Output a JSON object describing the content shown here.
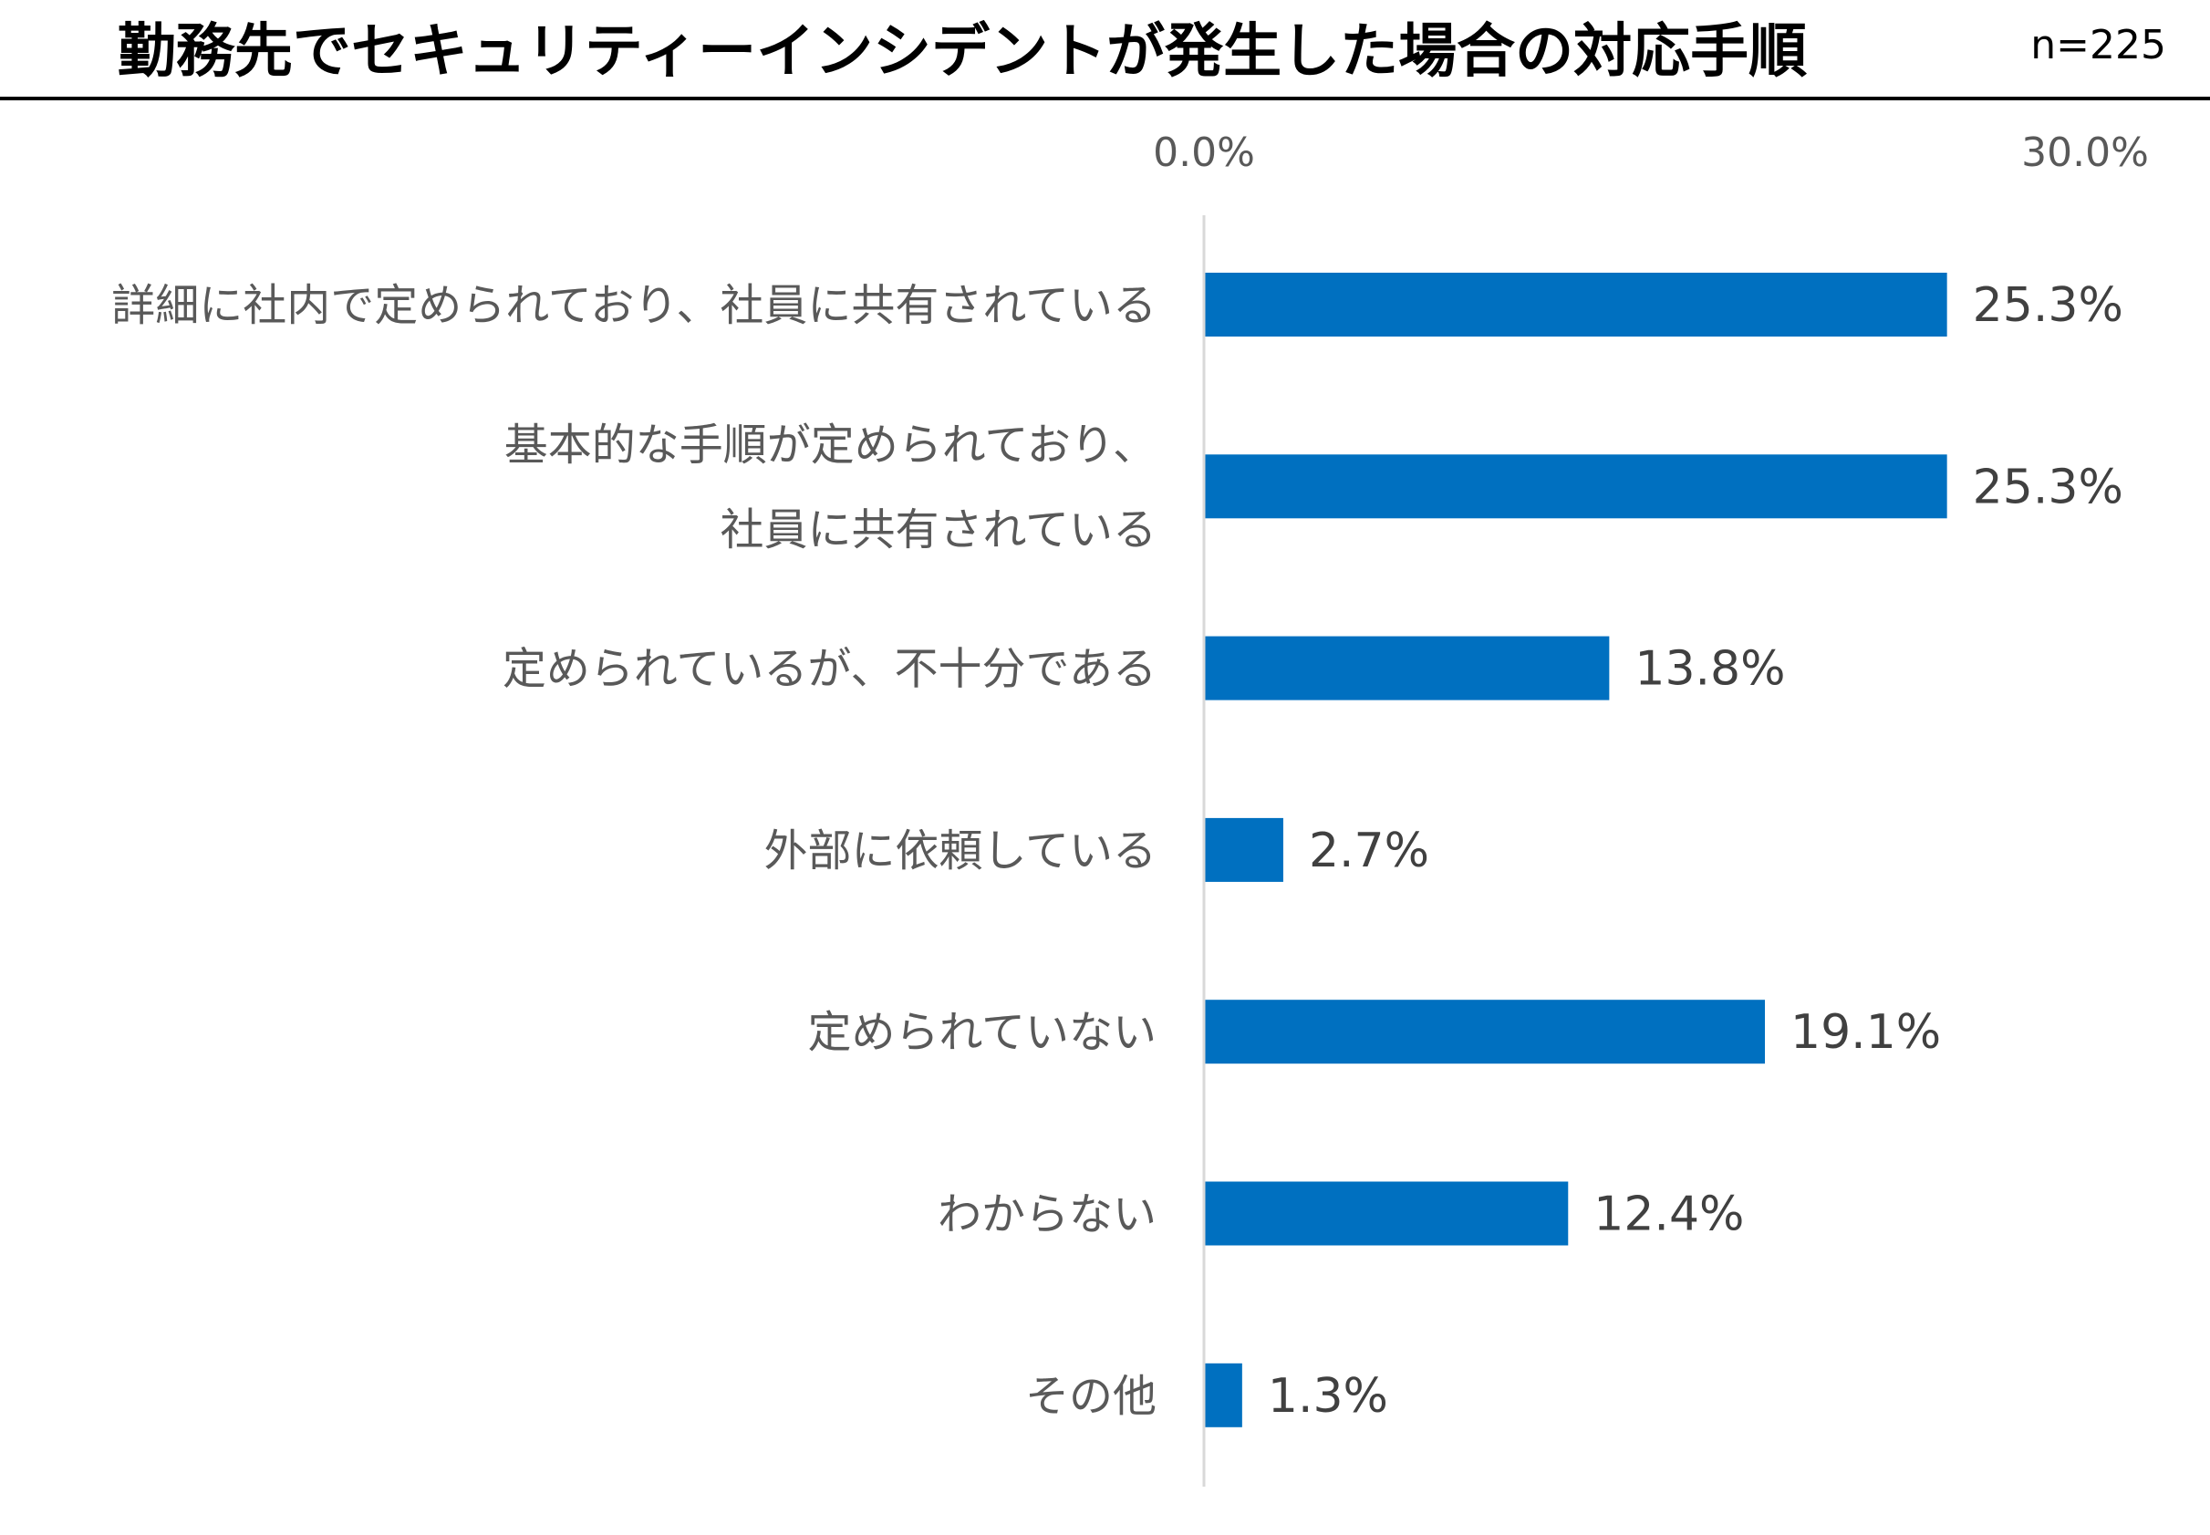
{
  "chart_data": {
    "type": "bar",
    "orientation": "horizontal",
    "title": "勤務先でセキュリティーインシデントが発生した場合の対応手順",
    "sample_size": "n=225",
    "categories": [
      [
        "詳細に社内で定められており、社員に共有されている"
      ],
      [
        "基本的な手順が定められており、",
        "社員に共有されている"
      ],
      [
        "定められているが、不十分である"
      ],
      [
        "外部に依頼している"
      ],
      [
        "定められていない"
      ],
      [
        "わからない"
      ],
      [
        "その他"
      ]
    ],
    "values": [
      25.3,
      25.3,
      13.8,
      2.7,
      19.1,
      12.4,
      1.3
    ],
    "value_labels": [
      "25.3%",
      "25.3%",
      "13.8%",
      "2.7%",
      "19.1%",
      "12.4%",
      "1.3%"
    ],
    "x_ticks": [
      "0.0%",
      "30.0%"
    ],
    "xlim": [
      0,
      30
    ],
    "xlabel": "",
    "ylabel": "",
    "grid": false,
    "legend": "none",
    "bar_color": "#0070C0",
    "axis_color": "#D9D9D9"
  }
}
